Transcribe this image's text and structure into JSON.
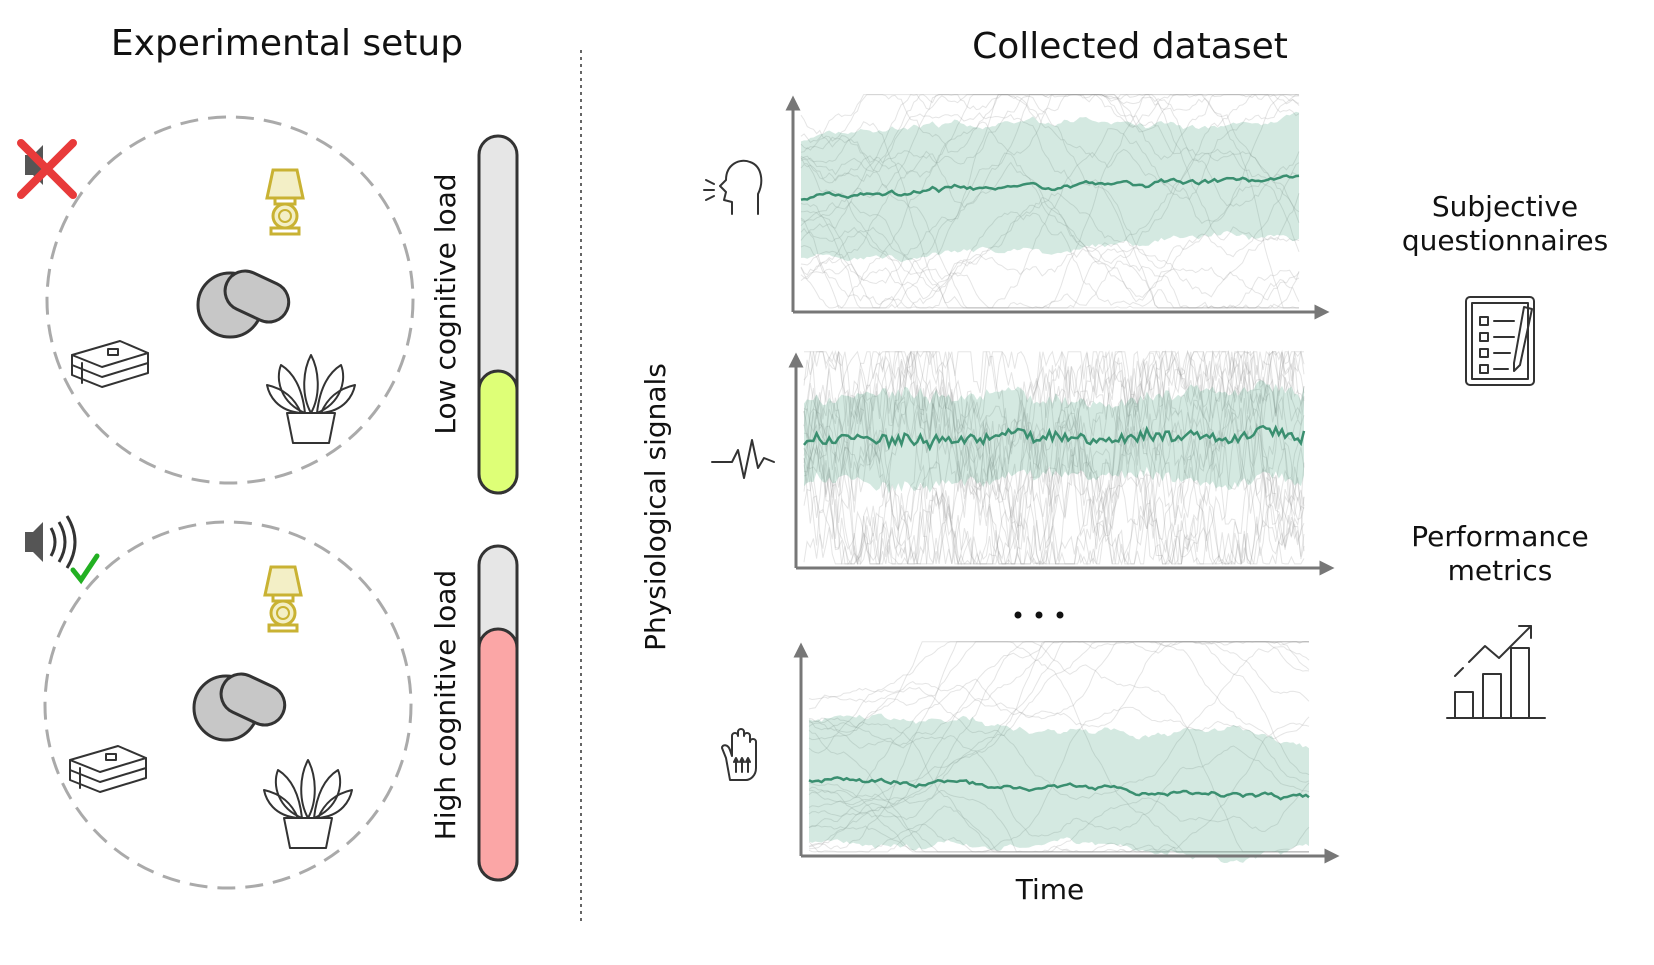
{
  "left": {
    "title": "Experimental setup",
    "conditions": [
      {
        "label": "Low cognitive load"
      },
      {
        "label": "High cognitive load"
      }
    ]
  },
  "right": {
    "title": "Collected dataset",
    "y_label": "Physiological signals",
    "x_label": "Time",
    "outputs": [
      {
        "lines": [
          "Subjective",
          "questionnaires"
        ]
      },
      {
        "lines": [
          "Performance",
          "metrics"
        ]
      }
    ]
  }
}
